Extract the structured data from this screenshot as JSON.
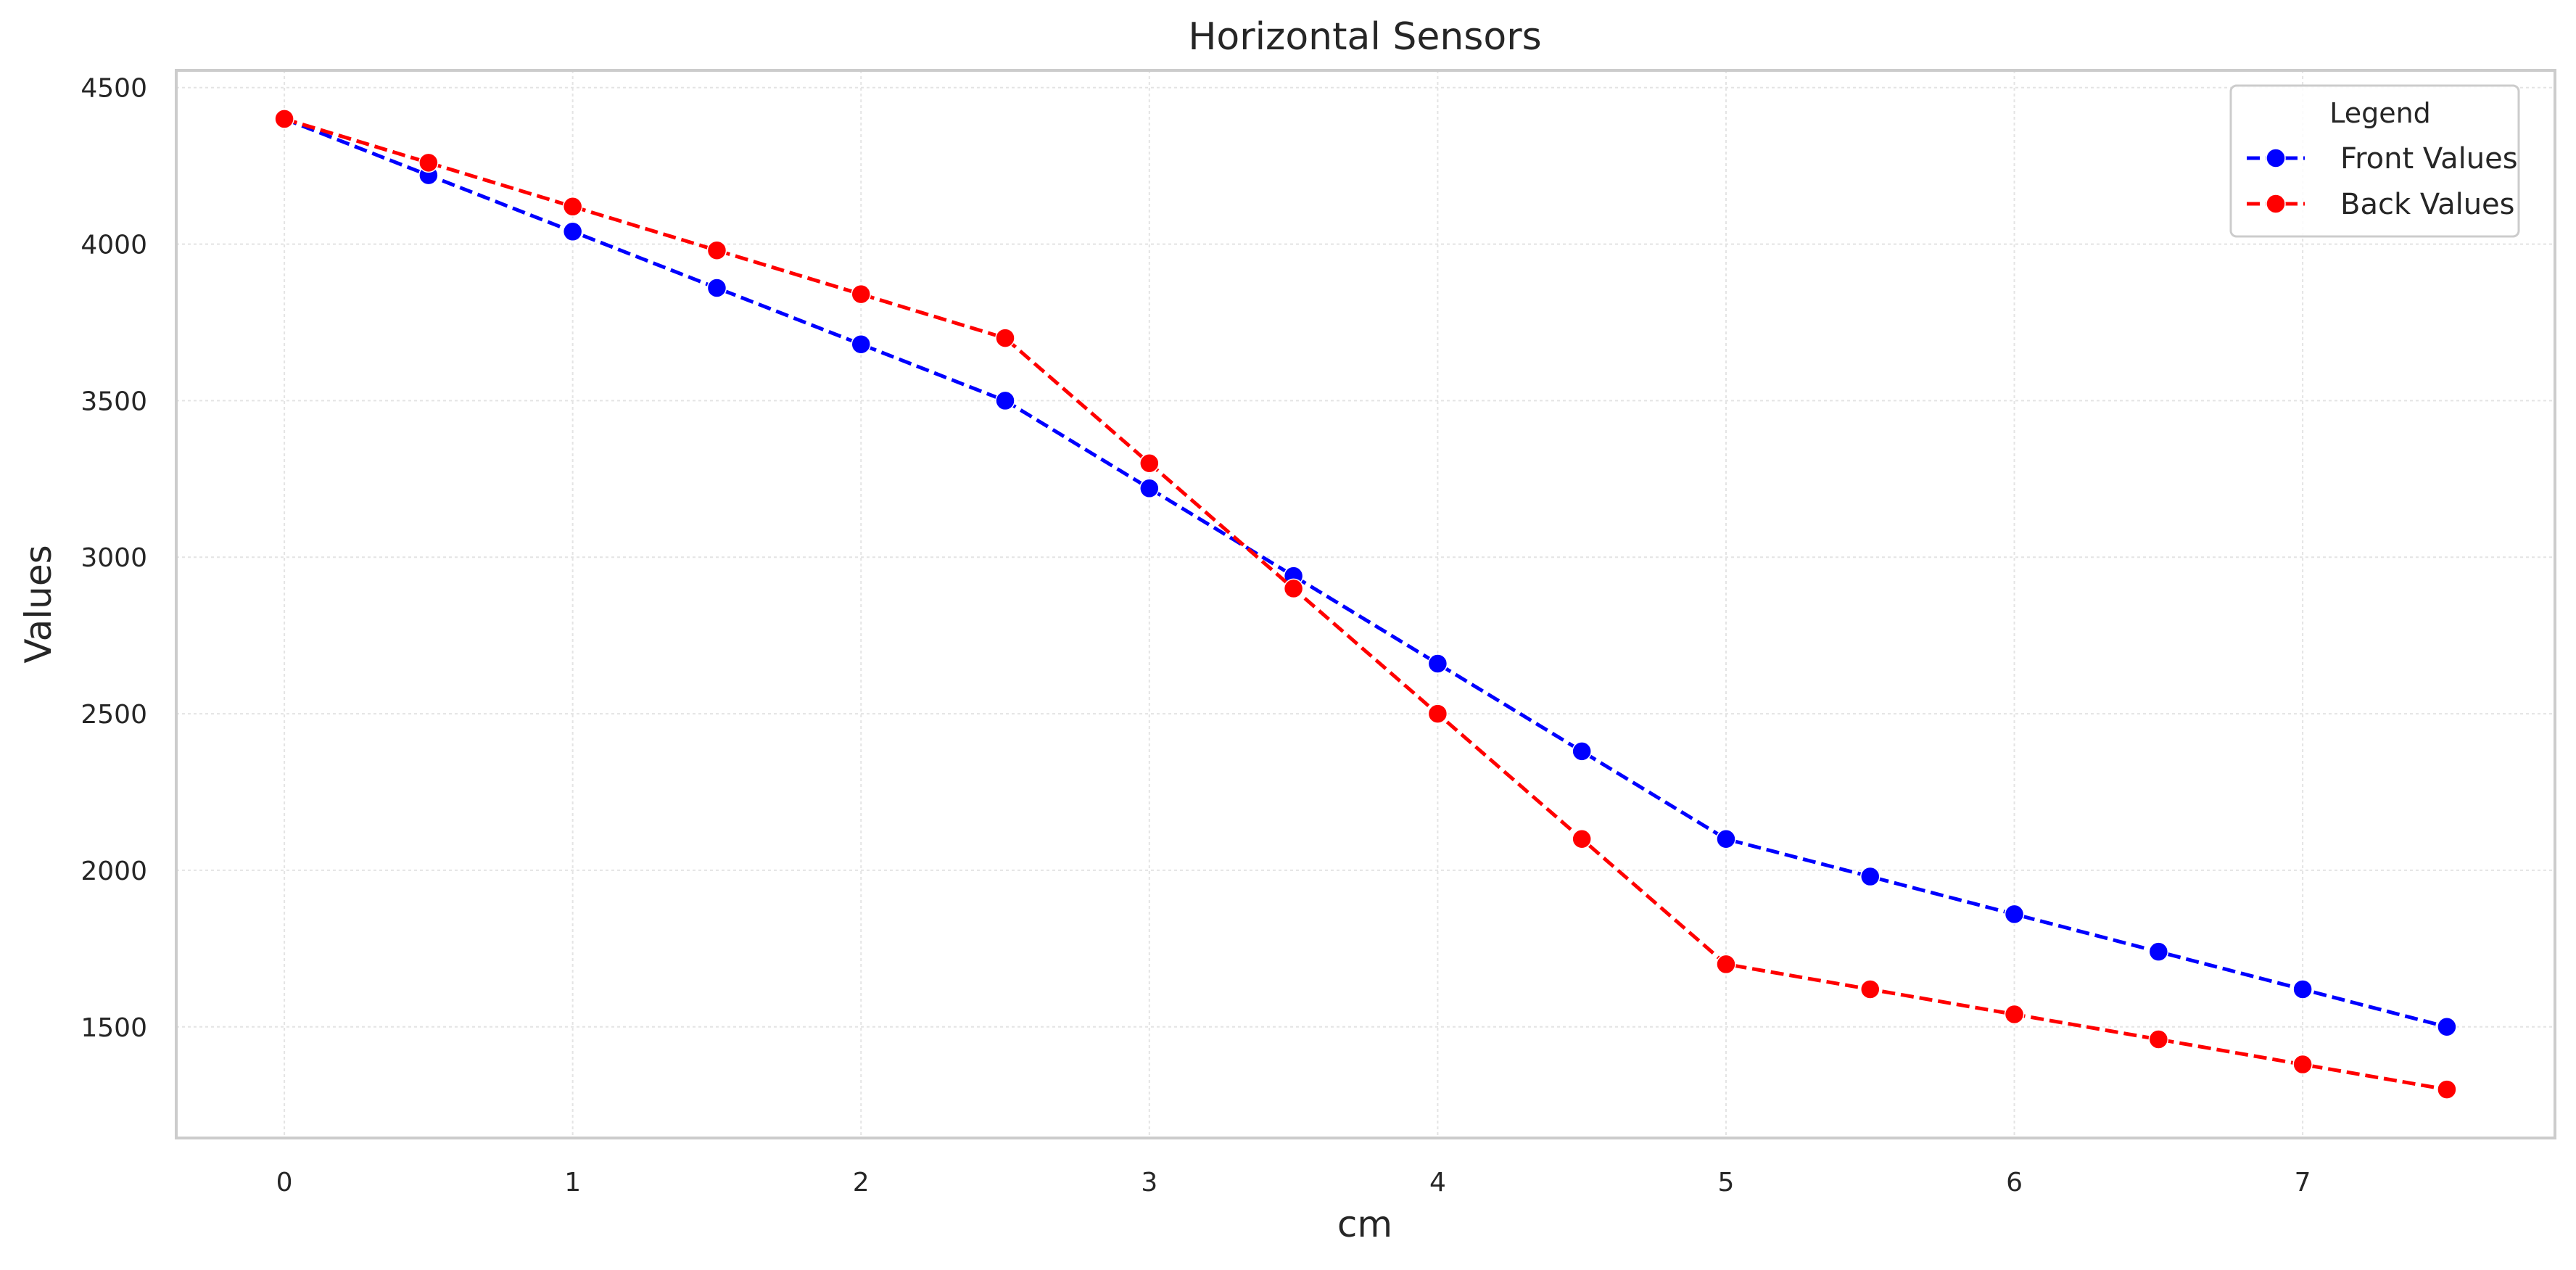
{
  "chart_data": {
    "type": "line",
    "title": "Horizontal Sensors",
    "xlabel": "cm",
    "ylabel": "Values",
    "x": [
      0,
      0.5,
      1,
      1.5,
      2,
      2.5,
      3,
      3.5,
      4,
      4.5,
      5,
      5.5,
      6,
      6.5,
      7,
      7.5
    ],
    "series": [
      {
        "name": "Front Values",
        "color": "#0000ff",
        "values": [
          4400,
          4220,
          4040,
          3860,
          3680,
          3500,
          3220,
          2940,
          2660,
          2380,
          2100,
          1980,
          1860,
          1740,
          1620,
          1500
        ]
      },
      {
        "name": "Back Values",
        "color": "#ff0000",
        "values": [
          4400,
          4260,
          4120,
          3980,
          3840,
          3700,
          3300,
          2900,
          2500,
          2100,
          1700,
          1620,
          1540,
          1460,
          1380,
          1300
        ]
      }
    ],
    "xlim": [
      -0.375,
      7.875
    ],
    "ylim": [
      1145,
      4555
    ],
    "xticks": [
      "0",
      "1",
      "2",
      "3",
      "4",
      "5",
      "6",
      "7"
    ],
    "yticks": [
      "1500",
      "2000",
      "2500",
      "3000",
      "3500",
      "4000",
      "4500"
    ],
    "grid": true,
    "legend": {
      "title": "Legend",
      "placement": "top-right"
    },
    "line_style": "dashed",
    "marker": "circle"
  }
}
